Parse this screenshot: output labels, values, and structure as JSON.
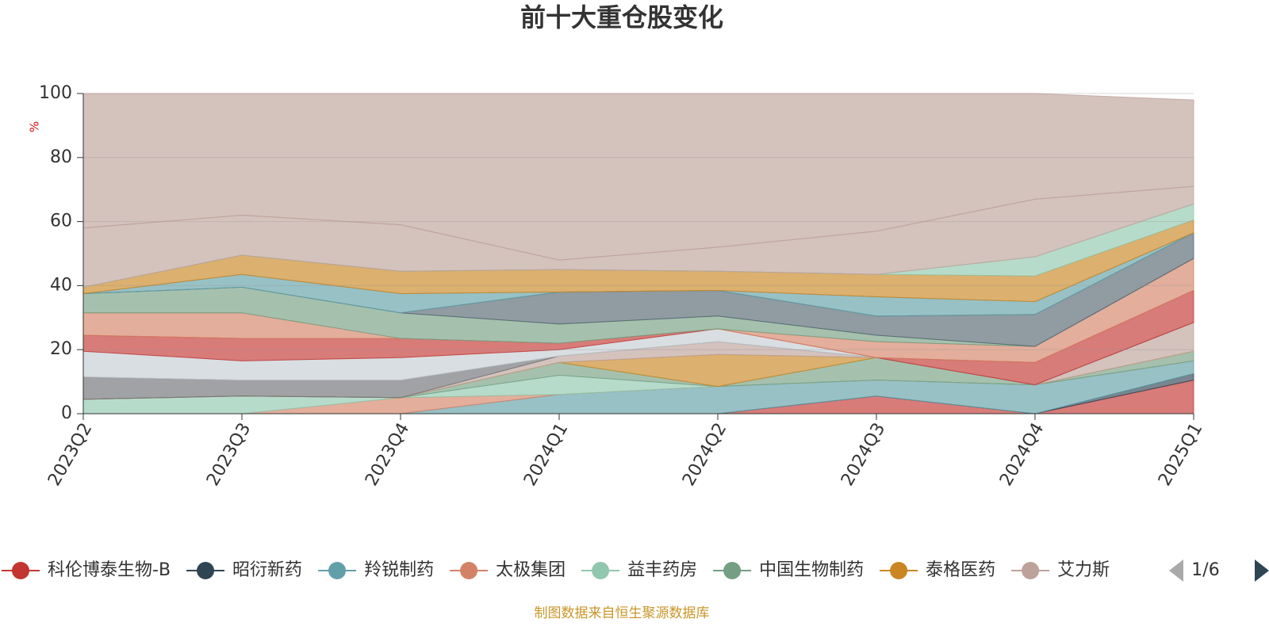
{
  "chart_data": {
    "type": "stacked-area",
    "title": "前十大重仓股变化",
    "y_unit": "%",
    "categories": [
      "2023Q2",
      "2023Q3",
      "2023Q4",
      "2024Q1",
      "2024Q2",
      "2024Q3",
      "2024Q4",
      "2025Q1"
    ],
    "ylim": [
      0,
      100
    ],
    "yticks": [
      0,
      20,
      40,
      60,
      80,
      100
    ],
    "grid": true,
    "legend_page": "1/6",
    "source": "制图数据来自恒生聚源数据库",
    "series": [
      {
        "name": "科伦博泰生物-B",
        "color": "#c23531",
        "values": [
          0,
          0,
          0,
          0,
          0,
          5.5,
          0,
          10.5
        ]
      },
      {
        "name": "昭衍新药",
        "color": "#2f4554",
        "values": [
          0,
          0,
          0,
          0,
          0,
          0,
          0,
          2
        ]
      },
      {
        "name": "羚锐制药",
        "color": "#61a0a8",
        "values": [
          0,
          0,
          0,
          6,
          8.5,
          5,
          9,
          4
        ]
      },
      {
        "name": "太极集团",
        "color": "#d48265",
        "values": [
          0,
          0,
          5,
          0,
          0,
          0,
          0,
          0
        ]
      },
      {
        "name": "益丰药房",
        "color": "#91c7ae",
        "values": [
          4.5,
          5.5,
          0,
          6,
          0,
          0,
          0,
          0
        ]
      },
      {
        "name": "中国生物制药",
        "color": "#749f83",
        "values": [
          0,
          0,
          0,
          4,
          0,
          7,
          0,
          3
        ]
      },
      {
        "name": "泰格医药",
        "color": "#ca8622",
        "values": [
          0,
          0,
          0,
          0,
          10,
          0,
          0,
          0
        ]
      },
      {
        "name": "艾力斯",
        "color": "#bda29a",
        "values": [
          0,
          0,
          0,
          2,
          4,
          0,
          0,
          9
        ]
      },
      {
        "color": "#6e7074",
        "values": [
          7,
          5,
          5.5,
          0,
          0,
          0,
          0,
          0
        ]
      },
      {
        "color": "#c4ccd3",
        "values": [
          8,
          6,
          7,
          2,
          4,
          0,
          0,
          0
        ]
      },
      {
        "color": "#c23531",
        "values": [
          5,
          7,
          6,
          2,
          0,
          0,
          7,
          10
        ]
      },
      {
        "color": "#d48265",
        "values": [
          7,
          8,
          0,
          0,
          0,
          5,
          5,
          10
        ]
      },
      {
        "color": "#749f83",
        "values": [
          6,
          8,
          8,
          6,
          4,
          2,
          0,
          0
        ]
      },
      {
        "color": "#546570",
        "values": [
          0,
          0,
          0,
          10,
          8,
          6,
          10,
          8
        ]
      },
      {
        "color": "#61a0a8",
        "values": [
          0,
          4,
          6,
          0,
          0,
          6,
          4,
          0
        ]
      },
      {
        "color": "#ca8622",
        "values": [
          2,
          6,
          7,
          7,
          6,
          7,
          8,
          4
        ]
      },
      {
        "color": "#91c7ae",
        "values": [
          0,
          0,
          0,
          0,
          0,
          0,
          6,
          5
        ]
      },
      {
        "color": "#bda29a",
        "values": [
          18.5,
          12.5,
          14.5,
          3,
          7.5,
          13.5,
          18,
          5.5
        ]
      },
      {
        "color": "#bda29a",
        "values": [
          42,
          38,
          41,
          52,
          48,
          43,
          33,
          27
        ]
      }
    ]
  }
}
